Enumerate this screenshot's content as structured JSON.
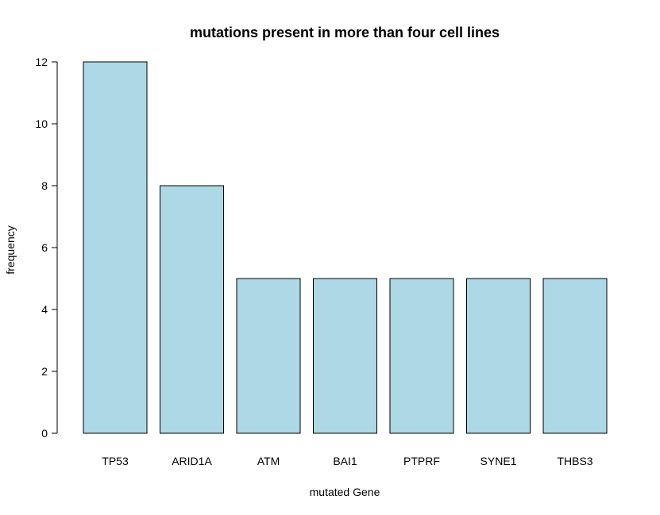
{
  "chart_data": {
    "type": "bar",
    "title": "mutations present in more than four cell lines",
    "xlabel": "mutated Gene",
    "ylabel": "frequency",
    "categories": [
      "TP53",
      "ARID1A",
      "ATM",
      "BAI1",
      "PTPRF",
      "SYNE1",
      "THBS3"
    ],
    "values": [
      12,
      8,
      5,
      5,
      5,
      5,
      5
    ],
    "yticks": [
      "0",
      "2",
      "4",
      "6",
      "8",
      "10",
      "12"
    ],
    "ylim": [
      0,
      12
    ],
    "grid": false,
    "bar_color": "#add8e6",
    "edge_color": "#000000"
  }
}
